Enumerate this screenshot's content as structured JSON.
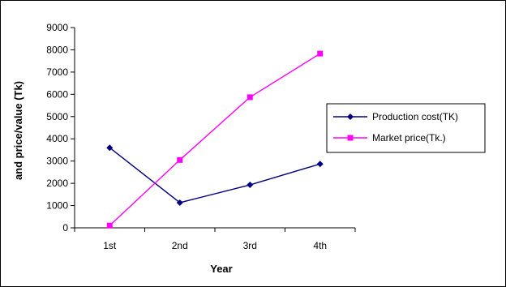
{
  "chart_data": {
    "type": "line",
    "title": "",
    "xlabel": "Year",
    "ylabel": "and price/value (Tk)",
    "categories": [
      "1st",
      "2nd",
      "3rd",
      "4th"
    ],
    "ylim": [
      0,
      9000
    ],
    "yticks": [
      0,
      1000,
      2000,
      3000,
      4000,
      5000,
      6000,
      7000,
      8000,
      9000
    ],
    "grid": false,
    "legend_position": "right",
    "series": [
      {
        "name": "Production cost(TK)",
        "values": [
          3600,
          1130,
          1930,
          2870
        ],
        "color": "#000080",
        "marker": "diamond"
      },
      {
        "name": "Market price(Tk.)",
        "values": [
          100,
          3050,
          5870,
          7830
        ],
        "color": "#ff00ff",
        "marker": "square"
      }
    ]
  }
}
